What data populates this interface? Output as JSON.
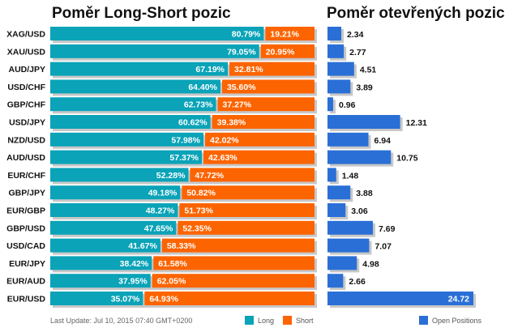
{
  "titles": {
    "left": "Poměr Long-Short pozic",
    "right": "Poměr otevřených pozic"
  },
  "footer": {
    "last_update": "Last Update: Jul 10, 2015 07:40 GMT+0200",
    "legend_long": "Long",
    "legend_short": "Short",
    "legend_open": "Open Positions"
  },
  "colors": {
    "long": "#0aa3b8",
    "short": "#fc6400",
    "open": "#2a6fd6",
    "shadow": "#c8c8c8"
  },
  "chart_data": [
    {
      "type": "bar",
      "orientation": "horizontal",
      "stacked": true,
      "title": "Poměr Long-Short pozic",
      "categories": [
        "XAG/USD",
        "XAU/USD",
        "AUD/JPY",
        "USD/CHF",
        "GBP/CHF",
        "USD/JPY",
        "NZD/USD",
        "AUD/USD",
        "EUR/CHF",
        "GBP/JPY",
        "EUR/GBP",
        "GBP/USD",
        "USD/CAD",
        "EUR/JPY",
        "EUR/AUD",
        "EUR/USD"
      ],
      "series": [
        {
          "name": "Long",
          "values": [
            80.79,
            79.05,
            67.19,
            64.4,
            62.73,
            60.62,
            57.98,
            57.37,
            52.28,
            49.18,
            48.27,
            47.65,
            41.67,
            38.42,
            37.95,
            35.07
          ],
          "labels": [
            "80.79%",
            "79.05%",
            "67.19%",
            "64.40%",
            "62.73%",
            "60.62%",
            "57.98%",
            "57.37%",
            "52.28%",
            "49.18%",
            "48.27%",
            "47.65%",
            "41.67%",
            "38.42%",
            "37.95%",
            "35.07%"
          ]
        },
        {
          "name": "Short",
          "values": [
            19.21,
            20.95,
            32.81,
            35.6,
            37.27,
            39.38,
            42.02,
            42.63,
            47.72,
            50.82,
            51.73,
            52.35,
            58.33,
            61.58,
            62.05,
            64.93
          ],
          "labels": [
            "19.21%",
            "20.95%",
            "32.81%",
            "35.60%",
            "37.27%",
            "39.38%",
            "42.02%",
            "42.63%",
            "47.72%",
            "50.82%",
            "51.73%",
            "52.35%",
            "58.33%",
            "61.58%",
            "62.05%",
            "64.93%"
          ]
        }
      ],
      "xlim": [
        0,
        100
      ]
    },
    {
      "type": "bar",
      "orientation": "horizontal",
      "title": "Poměr otevřených pozic",
      "categories": [
        "XAG/USD",
        "XAU/USD",
        "AUD/JPY",
        "USD/CHF",
        "GBP/CHF",
        "USD/JPY",
        "NZD/USD",
        "AUD/USD",
        "EUR/CHF",
        "GBP/JPY",
        "EUR/GBP",
        "GBP/USD",
        "USD/CAD",
        "EUR/JPY",
        "EUR/AUD",
        "EUR/USD"
      ],
      "series": [
        {
          "name": "Open Positions",
          "values": [
            2.34,
            2.77,
            4.51,
            3.89,
            0.96,
            12.31,
            6.94,
            10.75,
            1.48,
            3.88,
            3.06,
            7.69,
            7.07,
            4.98,
            2.66,
            24.72
          ],
          "labels": [
            "2.34",
            "2.77",
            "4.51",
            "3.89",
            "0.96",
            "12.31",
            "6.94",
            "10.75",
            "1.48",
            "3.88",
            "3.06",
            "7.69",
            "7.07",
            "4.98",
            "2.66",
            "24.72"
          ]
        }
      ],
      "xlim": [
        0,
        24.72
      ]
    }
  ]
}
